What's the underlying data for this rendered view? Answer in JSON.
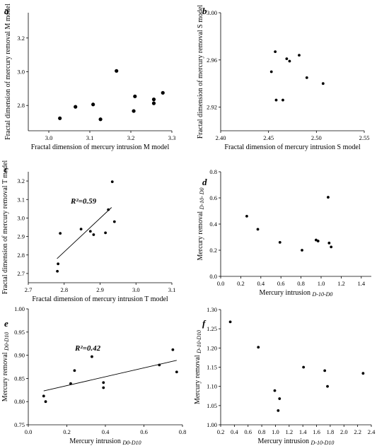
{
  "chart_data": [
    {
      "panel": "a",
      "type": "scatter",
      "xlabel": "Fractal dimension of mercury intrusion M model",
      "ylabel": "Fractal dimension of mercury removal M model",
      "xlim": [
        2.95,
        3.3
      ],
      "ylim": [
        2.65,
        3.35
      ],
      "xticks": [
        "3.0",
        "3.1",
        "3.2",
        "3.3"
      ],
      "xtick_values": [
        3.0,
        3.1,
        3.2,
        3.3
      ],
      "yticks": [
        "2.8",
        "3.0",
        "3.2"
      ],
      "ytick_values": [
        2.8,
        3.0,
        3.2
      ],
      "x": [
        3.027,
        3.065,
        3.108,
        3.126,
        3.165,
        3.207,
        3.21,
        3.256,
        3.256,
        3.278
      ],
      "y": [
        2.724,
        2.792,
        2.806,
        2.718,
        3.005,
        2.767,
        2.854,
        2.836,
        2.813,
        2.875
      ]
    },
    {
      "panel": "b",
      "type": "scatter",
      "xlabel": "Fractal dimension of mercury intrusion S model",
      "ylabel": "Fractal dimension of mercury removal S model",
      "xlim": [
        2.4,
        2.55
      ],
      "ylim": [
        2.9,
        3.0
      ],
      "xticks": [
        "2.40",
        "2.45",
        "2.50",
        "2.55"
      ],
      "xtick_values": [
        2.4,
        2.45,
        2.5,
        2.55
      ],
      "yticks": [
        "2.92",
        "2.96",
        "3.00"
      ],
      "ytick_values": [
        2.92,
        2.96,
        3.0
      ],
      "x": [
        2.453,
        2.457,
        2.458,
        2.465,
        2.469,
        2.472,
        2.482,
        2.49,
        2.507
      ],
      "y": [
        2.95,
        2.967,
        2.926,
        2.926,
        2.961,
        2.959,
        2.964,
        2.945,
        2.94
      ]
    },
    {
      "panel": "c",
      "type": "scatter",
      "xlabel": "Fractal dimension of mercury intrusion T model",
      "ylabel": "Fractal dimension of mercury removal T model",
      "xlim": [
        2.7,
        3.1
      ],
      "ylim": [
        2.65,
        3.25
      ],
      "xticks": [
        "2.7",
        "2.8",
        "2.9",
        "3.0",
        "3.1"
      ],
      "xtick_values": [
        2.7,
        2.8,
        2.9,
        3.0,
        3.1
      ],
      "yticks": [
        "2.7",
        "2.8",
        "2.9",
        "3.0",
        "3.1",
        "3.2"
      ],
      "ytick_values": [
        2.7,
        2.8,
        2.9,
        3.0,
        3.1,
        3.2
      ],
      "x": [
        2.781,
        2.783,
        2.789,
        2.847,
        2.873,
        2.882,
        2.915,
        2.923,
        2.934,
        2.94
      ],
      "y": [
        2.712,
        2.752,
        2.917,
        2.94,
        2.928,
        2.91,
        2.92,
        3.045,
        3.196,
        2.98
      ],
      "fit": {
        "x": [
          2.78,
          2.932
        ],
        "y": [
          2.78,
          3.057
        ]
      },
      "annotation": "R²=0.59"
    },
    {
      "panel": "d",
      "type": "scatter",
      "xlabel": "Mercury intrusion D-10-D0",
      "xlabel_main": "Mercury intrusion ",
      "xlabel_sub": "D-10-D0",
      "ylabel": "Mercury removal D-10-D0",
      "ylabel_main": "Mercury removal ",
      "ylabel_sub": "D-10- D0",
      "xlim": [
        0.0,
        1.5
      ],
      "ylim": [
        0.0,
        0.8
      ],
      "xticks": [
        "0.0",
        "0.2",
        "0.4",
        "0.6",
        "0.8",
        "1.0",
        "1.2",
        "1.4"
      ],
      "xtick_values": [
        0,
        0.2,
        0.4,
        0.6,
        0.8,
        1.0,
        1.2,
        1.4
      ],
      "yticks": [
        "0.0",
        "0.2",
        "0.4",
        "0.6",
        "0.8"
      ],
      "ytick_values": [
        0,
        0.2,
        0.4,
        0.6,
        0.8
      ],
      "x": [
        0.26,
        0.37,
        0.59,
        0.81,
        0.95,
        0.97,
        1.07,
        1.08,
        1.1
      ],
      "y": [
        0.46,
        0.36,
        0.26,
        0.2,
        0.278,
        0.27,
        0.605,
        0.255,
        0.225
      ]
    },
    {
      "panel": "e",
      "type": "scatter",
      "xlabel": "Mercury intrusion D0-D10",
      "xlabel_main": "Mercury intrusion ",
      "xlabel_sub": "D0-D10",
      "ylabel": "Mercury removal D0-D10",
      "ylabel_main": "Mercury removal ",
      "ylabel_sub": "D0-D10",
      "xlim": [
        0.0,
        0.8
      ],
      "ylim": [
        0.75,
        1.0
      ],
      "xticks": [
        "0.0",
        "0.2",
        "0.4",
        "0.6",
        "0.8"
      ],
      "xtick_values": [
        0,
        0.2,
        0.4,
        0.6,
        0.8
      ],
      "yticks": [
        "0.75",
        "0.80",
        "0.85",
        "0.90",
        "0.95",
        "1.00"
      ],
      "ytick_values": [
        0.75,
        0.8,
        0.85,
        0.9,
        0.95,
        1.0
      ],
      "x": [
        0.08,
        0.09,
        0.22,
        0.24,
        0.33,
        0.39,
        0.39,
        0.68,
        0.75,
        0.77
      ],
      "y": [
        0.812,
        0.8,
        0.839,
        0.867,
        0.897,
        0.83,
        0.841,
        0.879,
        0.912,
        0.864
      ],
      "fit": {
        "x": [
          0.08,
          0.77
        ],
        "y": [
          0.823,
          0.889
        ]
      },
      "annotation": "R²=0.42"
    },
    {
      "panel": "f",
      "type": "scatter",
      "xlabel": "Mercury intrusion D-10-D10",
      "xlabel_main": "Mercury intrusion ",
      "xlabel_sub": "D-10-D10",
      "ylabel": "Mercury removal D-10-D10",
      "ylabel_main": "Mercury removal ",
      "ylabel_sub": "D-10-D10",
      "xlim": [
        0.2,
        2.4
      ],
      "ylim": [
        1.0,
        1.3
      ],
      "xticks": [
        "0.2",
        "0.4",
        "0.6",
        "0.8",
        "1.0",
        "1.2",
        "1.4",
        "1.6",
        "1.8",
        "2.0",
        "2.2",
        "2.4"
      ],
      "xtick_values": [
        0.2,
        0.4,
        0.6,
        0.8,
        1.0,
        1.2,
        1.4,
        1.6,
        1.8,
        2.0,
        2.2,
        2.4
      ],
      "yticks": [
        "1.00",
        "1.05",
        "1.10",
        "1.15",
        "1.20",
        "1.25",
        "1.30"
      ],
      "ytick_values": [
        1.0,
        1.05,
        1.1,
        1.15,
        1.2,
        1.25,
        1.3
      ],
      "x": [
        0.34,
        0.75,
        0.99,
        1.04,
        1.06,
        1.41,
        1.72,
        1.76,
        2.28
      ],
      "y": [
        1.268,
        1.202,
        1.089,
        1.037,
        1.068,
        1.15,
        1.141,
        1.1,
        1.134
      ]
    }
  ]
}
